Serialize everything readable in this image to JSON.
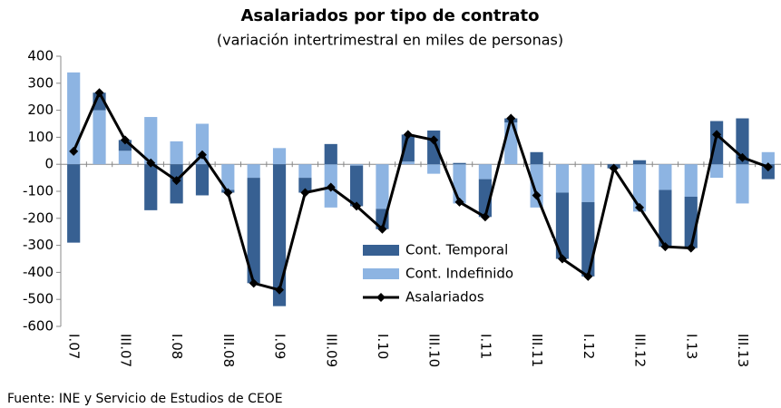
{
  "chart_data": {
    "type": "bar",
    "title": "Asalariados por tipo de contrato",
    "subtitle": "(variación intertrimestral en miles de personas)",
    "source": "Fuente: INE y Servicio de Estudios de CEOE",
    "categories": [
      "I.07",
      null,
      "III.07",
      null,
      "I.08",
      null,
      "III.08",
      null,
      "I.09",
      null,
      "III.09",
      null,
      "I.10",
      null,
      "III.10",
      null,
      "I.11",
      null,
      "III.11",
      null,
      "I.12",
      null,
      "III.12",
      null,
      "I.13",
      null,
      "III.13",
      null
    ],
    "series": [
      {
        "name": "Cont. Temporal",
        "color": "#376092",
        "type": "bar",
        "values": [
          -290,
          65,
          40,
          -170,
          -145,
          -115,
          -10,
          -390,
          -525,
          -55,
          75,
          -150,
          -75,
          100,
          125,
          5,
          -140,
          15,
          45,
          -245,
          -275,
          -15,
          15,
          -210,
          -190,
          160,
          170,
          -55
        ]
      },
      {
        "name": "Cont. Indefinido",
        "color": "#8db4e2",
        "type": "bar",
        "values": [
          340,
          200,
          50,
          175,
          85,
          150,
          -95,
          -50,
          60,
          -50,
          -160,
          -5,
          -165,
          10,
          -35,
          -145,
          -55,
          155,
          -160,
          -105,
          -140,
          0,
          -175,
          -95,
          -120,
          -50,
          -145,
          45
        ]
      },
      {
        "name": "Asalariados",
        "color": "#000000",
        "type": "line",
        "values": [
          48,
          265,
          90,
          5,
          -60,
          35,
          -105,
          -440,
          -465,
          -105,
          -85,
          -155,
          -240,
          110,
          90,
          -140,
          -195,
          170,
          -115,
          -350,
          -415,
          -15,
          -160,
          -305,
          -310,
          110,
          25,
          -10
        ]
      }
    ],
    "ylim": [
      -600,
      400
    ],
    "yticks": [
      -600,
      -500,
      -400,
      -300,
      -200,
      -100,
      0,
      100,
      200,
      300,
      400
    ]
  }
}
